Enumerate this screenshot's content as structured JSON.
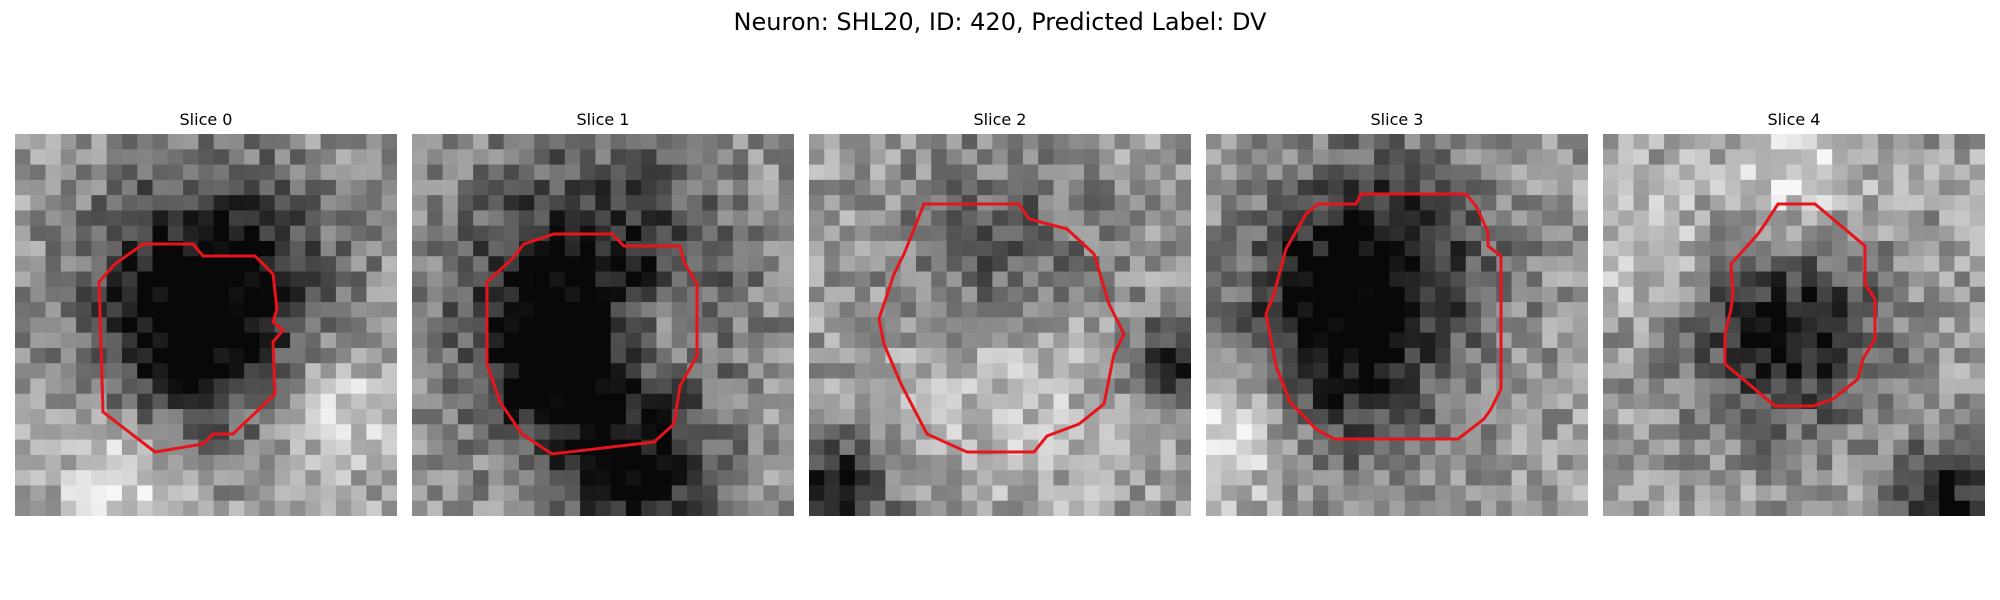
{
  "title": "Neuron: SHL20, ID: 420, Predicted Label: DV",
  "contour_color": "#e8141b",
  "slices": [
    {
      "label": "Slice 0"
    },
    {
      "label": "Slice 1"
    },
    {
      "label": "Slice 2"
    },
    {
      "label": "Slice 3"
    },
    {
      "label": "Slice 4"
    }
  ]
}
